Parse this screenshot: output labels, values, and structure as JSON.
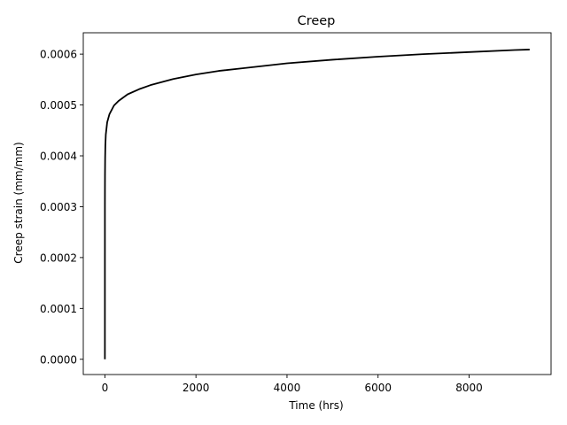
{
  "chart_data": {
    "type": "line",
    "title": "Creep",
    "xlabel": "Time (hrs)",
    "ylabel": "Creep strain (mm/mm)",
    "xlim": [
      -475,
      9800
    ],
    "ylim": [
      -3e-05,
      0.000642
    ],
    "xticks": [
      0,
      2000,
      4000,
      6000,
      8000
    ],
    "xtick_labels": [
      "0",
      "2000",
      "4000",
      "6000",
      "8000"
    ],
    "yticks": [
      0,
      0.0001,
      0.0002,
      0.0003,
      0.0004,
      0.0005,
      0.0006
    ],
    "ytick_labels": [
      "0.0000",
      "0.0001",
      "0.0002",
      "0.0003",
      "0.0004",
      "0.0005",
      "0.0006"
    ],
    "grid": false,
    "legend": "none",
    "series": [
      {
        "color": "#000000",
        "x": [
          0,
          0.5,
          1,
          2,
          5,
          10,
          20,
          50,
          100,
          200,
          300,
          500,
          750,
          1000,
          1500,
          2000,
          2500,
          3000,
          4000,
          5000,
          6000,
          7000,
          8000,
          9000,
          9330
        ],
        "y": [
          0,
          0.000306,
          0.000332,
          0.000361,
          0.000396,
          0.00042,
          0.000442,
          0.000466,
          0.000482,
          0.000499,
          0.000508,
          0.000521,
          0.000531,
          0.000539,
          0.000551,
          0.00056,
          0.000567,
          0.000572,
          0.000582,
          0.000589,
          0.000595,
          0.0006,
          0.000604,
          0.000608,
          0.000609
        ]
      }
    ]
  }
}
